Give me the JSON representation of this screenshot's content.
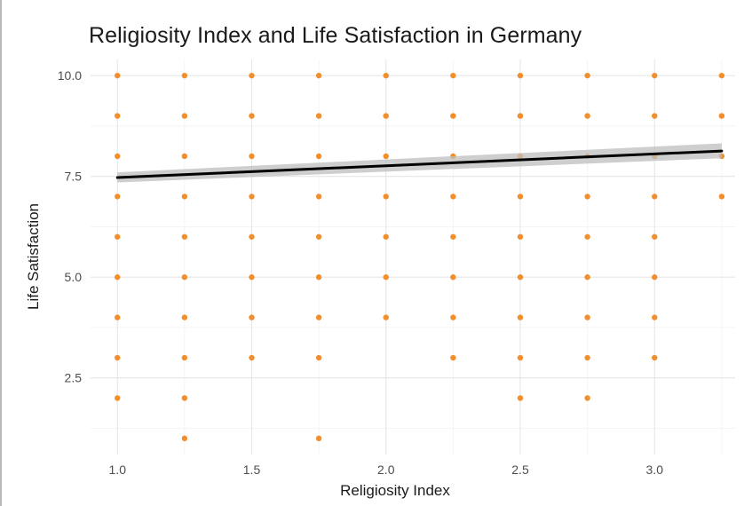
{
  "chart_data": {
    "type": "scatter",
    "title": "Religiosity Index and Life Satisfaction in Germany",
    "xlabel": "Religiosity Index",
    "ylabel": "Life Satisfaction",
    "xlim": [
      0.9,
      3.3
    ],
    "ylim": [
      0.6,
      10.4
    ],
    "x_ticks": [
      1.0,
      1.5,
      2.0,
      2.5,
      3.0
    ],
    "x_tick_labels": [
      "1.0",
      "1.5",
      "2.0",
      "2.5",
      "3.0"
    ],
    "y_ticks": [
      2.5,
      5.0,
      7.5,
      10.0
    ],
    "y_tick_labels": [
      "2.5",
      "5.0",
      "7.5",
      "10.0"
    ],
    "grid": true,
    "point_color": "#f28e2b",
    "points": [
      {
        "x": 1.0,
        "y": 2
      },
      {
        "x": 1.0,
        "y": 3
      },
      {
        "x": 1.0,
        "y": 4
      },
      {
        "x": 1.0,
        "y": 5
      },
      {
        "x": 1.0,
        "y": 6
      },
      {
        "x": 1.0,
        "y": 7
      },
      {
        "x": 1.0,
        "y": 8
      },
      {
        "x": 1.0,
        "y": 9
      },
      {
        "x": 1.0,
        "y": 10
      },
      {
        "x": 1.25,
        "y": 1
      },
      {
        "x": 1.25,
        "y": 2
      },
      {
        "x": 1.25,
        "y": 3
      },
      {
        "x": 1.25,
        "y": 4
      },
      {
        "x": 1.25,
        "y": 5
      },
      {
        "x": 1.25,
        "y": 6
      },
      {
        "x": 1.25,
        "y": 7
      },
      {
        "x": 1.25,
        "y": 8
      },
      {
        "x": 1.25,
        "y": 9
      },
      {
        "x": 1.25,
        "y": 10
      },
      {
        "x": 1.5,
        "y": 3
      },
      {
        "x": 1.5,
        "y": 4
      },
      {
        "x": 1.5,
        "y": 5
      },
      {
        "x": 1.5,
        "y": 6
      },
      {
        "x": 1.5,
        "y": 7
      },
      {
        "x": 1.5,
        "y": 8
      },
      {
        "x": 1.5,
        "y": 9
      },
      {
        "x": 1.5,
        "y": 10
      },
      {
        "x": 1.75,
        "y": 1
      },
      {
        "x": 1.75,
        "y": 3
      },
      {
        "x": 1.75,
        "y": 4
      },
      {
        "x": 1.75,
        "y": 5
      },
      {
        "x": 1.75,
        "y": 6
      },
      {
        "x": 1.75,
        "y": 7
      },
      {
        "x": 1.75,
        "y": 8
      },
      {
        "x": 1.75,
        "y": 9
      },
      {
        "x": 1.75,
        "y": 10
      },
      {
        "x": 2.0,
        "y": 4
      },
      {
        "x": 2.0,
        "y": 5
      },
      {
        "x": 2.0,
        "y": 6
      },
      {
        "x": 2.0,
        "y": 7
      },
      {
        "x": 2.0,
        "y": 8
      },
      {
        "x": 2.0,
        "y": 9
      },
      {
        "x": 2.0,
        "y": 10
      },
      {
        "x": 2.25,
        "y": 3
      },
      {
        "x": 2.25,
        "y": 4
      },
      {
        "x": 2.25,
        "y": 5
      },
      {
        "x": 2.25,
        "y": 6
      },
      {
        "x": 2.25,
        "y": 7
      },
      {
        "x": 2.25,
        "y": 8
      },
      {
        "x": 2.25,
        "y": 9
      },
      {
        "x": 2.25,
        "y": 10
      },
      {
        "x": 2.5,
        "y": 2
      },
      {
        "x": 2.5,
        "y": 3
      },
      {
        "x": 2.5,
        "y": 4
      },
      {
        "x": 2.5,
        "y": 5
      },
      {
        "x": 2.5,
        "y": 6
      },
      {
        "x": 2.5,
        "y": 7
      },
      {
        "x": 2.5,
        "y": 8
      },
      {
        "x": 2.5,
        "y": 9
      },
      {
        "x": 2.5,
        "y": 10
      },
      {
        "x": 2.75,
        "y": 2
      },
      {
        "x": 2.75,
        "y": 3
      },
      {
        "x": 2.75,
        "y": 4
      },
      {
        "x": 2.75,
        "y": 5
      },
      {
        "x": 2.75,
        "y": 6
      },
      {
        "x": 2.75,
        "y": 7
      },
      {
        "x": 2.75,
        "y": 8
      },
      {
        "x": 2.75,
        "y": 9
      },
      {
        "x": 2.75,
        "y": 10
      },
      {
        "x": 3.0,
        "y": 3
      },
      {
        "x": 3.0,
        "y": 4
      },
      {
        "x": 3.0,
        "y": 5
      },
      {
        "x": 3.0,
        "y": 6
      },
      {
        "x": 3.0,
        "y": 7
      },
      {
        "x": 3.0,
        "y": 8
      },
      {
        "x": 3.0,
        "y": 9
      },
      {
        "x": 3.0,
        "y": 10
      },
      {
        "x": 3.25,
        "y": 7
      },
      {
        "x": 3.25,
        "y": 8
      },
      {
        "x": 3.25,
        "y": 9
      },
      {
        "x": 3.25,
        "y": 10
      }
    ],
    "trend_line": {
      "type": "linear",
      "color": "#000000",
      "x": [
        1.0,
        3.25
      ],
      "y": [
        7.47,
        8.13
      ],
      "ci_lower": [
        7.35,
        7.95
      ],
      "ci_upper": [
        7.6,
        8.32
      ],
      "ci_color": "#bdbdbd"
    }
  }
}
